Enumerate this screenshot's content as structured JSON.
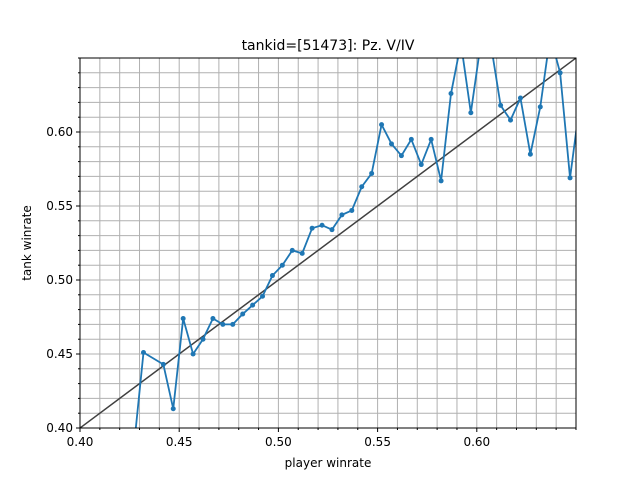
{
  "chart_data": {
    "type": "line",
    "title": "tankid=[51473]: Pz. V/IV",
    "xlabel": "player winrate",
    "ylabel": "tank winrate",
    "xlim": [
      0.4,
      0.65
    ],
    "ylim": [
      0.4,
      0.65
    ],
    "x_major_ticks": [
      0.4,
      0.45,
      0.5,
      0.55,
      0.6
    ],
    "x_tick_labels": [
      "0.40",
      "0.45",
      "0.50",
      "0.55",
      "0.60"
    ],
    "y_major_ticks": [
      0.4,
      0.45,
      0.5,
      0.55,
      0.6
    ],
    "y_tick_labels": [
      "0.40",
      "0.45",
      "0.50",
      "0.55",
      "0.60"
    ],
    "minor_tick_step": 0.01,
    "grid": true,
    "legend": "none",
    "colors": {
      "series": "#1f77b4",
      "reference": "#404040",
      "grid": "#b0b0b0"
    },
    "series": [
      {
        "x": [
          0.427,
          0.432,
          0.442,
          0.447,
          0.452,
          0.457,
          0.462,
          0.467,
          0.472,
          0.477,
          0.482,
          0.487,
          0.492,
          0.497,
          0.502,
          0.507,
          0.512,
          0.517,
          0.522,
          0.527,
          0.532,
          0.537,
          0.542,
          0.547,
          0.552,
          0.557,
          0.562,
          0.567,
          0.572,
          0.577,
          0.582,
          0.587,
          0.592,
          0.597,
          0.602,
          0.607,
          0.612,
          0.617,
          0.622,
          0.627,
          0.632,
          0.637,
          0.642,
          0.647,
          0.652
        ],
        "y": [
          0.385,
          0.451,
          0.443,
          0.413,
          0.474,
          0.45,
          0.46,
          0.474,
          0.47,
          0.47,
          0.477,
          0.483,
          0.489,
          0.503,
          0.51,
          0.52,
          0.518,
          0.535,
          0.537,
          0.534,
          0.544,
          0.547,
          0.563,
          0.572,
          0.605,
          0.592,
          0.584,
          0.595,
          0.578,
          0.595,
          0.567,
          0.626,
          0.66,
          0.613,
          0.66,
          0.66,
          0.618,
          0.608,
          0.623,
          0.585,
          0.617,
          0.665,
          0.64,
          0.569,
          0.62
        ]
      }
    ],
    "reference_line": {
      "x": [
        0.4,
        0.65
      ],
      "y": [
        0.4,
        0.65
      ]
    }
  }
}
